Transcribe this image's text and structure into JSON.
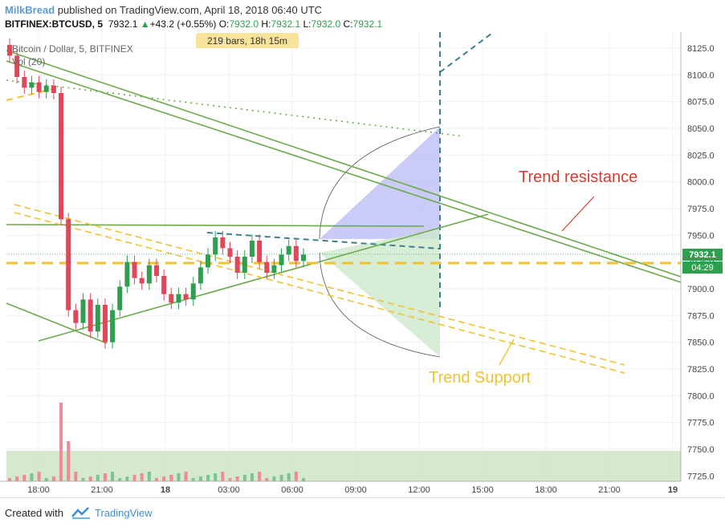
{
  "header": {
    "author": "MilkBread",
    "published_text": "published on TradingView.com, April 18, 2018 06:40 UTC",
    "symbol": "BITFINEX:BTCUSD, 5",
    "last_price": "7932.1",
    "change_arrow": "▲",
    "change": "+43.2 (+0.55%)",
    "ohlc": [
      {
        "label": "O:",
        "value": "7932.0"
      },
      {
        "label": "H:",
        "value": "7932.1"
      },
      {
        "label": "L:",
        "value": "7932.0"
      },
      {
        "label": "C:",
        "value": "7932.1"
      }
    ]
  },
  "legend": {
    "title": "Bitcoin / Dollar, 5, BITFINEX",
    "volume": "Vol (20)"
  },
  "measure_label": "219 bars, 18h 15m",
  "annotations": {
    "resistance": "Trend resistance",
    "support": "Trend Support"
  },
  "price_badges": {
    "last": "7932.1",
    "countdown": "04:29"
  },
  "footer": {
    "created": "Created with",
    "brand": "TradingView"
  },
  "colors": {
    "up": "#2e9e4f",
    "down": "#e0475a",
    "trendline": "#6aaa4b",
    "support": "#f1c232",
    "resistance_text": "#d33f2f",
    "support_text": "#f1c232",
    "projection": "#3d7f8e"
  },
  "chart_data": {
    "type": "candlestick",
    "y_axis": {
      "min": 7720,
      "max": 8140,
      "ticks": [
        8125.0,
        8100.0,
        8075.0,
        8050.0,
        8025.0,
        8000.0,
        7975.0,
        7950.0,
        7925.0,
        7900.0,
        7875.0,
        7850.0,
        7825.0,
        7800.0,
        7775.0,
        7750.0,
        7725.0
      ]
    },
    "x_axis": {
      "ticks": [
        "18:00",
        "21:00",
        "18",
        "03:00",
        "06:00",
        "09:00",
        "12:00",
        "15:00",
        "18:00",
        "21:00",
        "19"
      ]
    },
    "price_series": [
      {
        "t": 0,
        "o": 8128,
        "c": 8118
      },
      {
        "t": 1,
        "o": 8118,
        "c": 8098
      },
      {
        "t": 2,
        "o": 8098,
        "c": 8088
      },
      {
        "t": 3,
        "o": 8088,
        "c": 8093
      },
      {
        "t": 4,
        "o": 8093,
        "c": 8084
      },
      {
        "t": 5,
        "o": 8084,
        "c": 8090
      },
      {
        "t": 6,
        "o": 8090,
        "c": 8083
      },
      {
        "t": 7,
        "o": 8083,
        "c": 7965
      },
      {
        "t": 8,
        "o": 7965,
        "c": 7880
      },
      {
        "t": 9,
        "o": 7880,
        "c": 7868
      },
      {
        "t": 10,
        "o": 7868,
        "c": 7890
      },
      {
        "t": 11,
        "o": 7890,
        "c": 7860
      },
      {
        "t": 12,
        "o": 7860,
        "c": 7885
      },
      {
        "t": 13,
        "o": 7885,
        "c": 7850
      },
      {
        "t": 14,
        "o": 7850,
        "c": 7880
      },
      {
        "t": 15,
        "o": 7880,
        "c": 7902
      },
      {
        "t": 16,
        "o": 7902,
        "c": 7925
      },
      {
        "t": 17,
        "o": 7925,
        "c": 7910
      },
      {
        "t": 18,
        "o": 7910,
        "c": 7905
      },
      {
        "t": 19,
        "o": 7905,
        "c": 7922
      },
      {
        "t": 20,
        "o": 7922,
        "c": 7912
      },
      {
        "t": 21,
        "o": 7912,
        "c": 7895
      },
      {
        "t": 22,
        "o": 7895,
        "c": 7887
      },
      {
        "t": 23,
        "o": 7887,
        "c": 7895
      },
      {
        "t": 24,
        "o": 7895,
        "c": 7890
      },
      {
        "t": 25,
        "o": 7890,
        "c": 7905
      },
      {
        "t": 26,
        "o": 7905,
        "c": 7920
      },
      {
        "t": 27,
        "o": 7920,
        "c": 7932
      },
      {
        "t": 28,
        "o": 7932,
        "c": 7948
      },
      {
        "t": 29,
        "o": 7948,
        "c": 7938
      },
      {
        "t": 30,
        "o": 7938,
        "c": 7930
      },
      {
        "t": 31,
        "o": 7930,
        "c": 7915
      },
      {
        "t": 32,
        "o": 7915,
        "c": 7930
      },
      {
        "t": 33,
        "o": 7930,
        "c": 7945
      },
      {
        "t": 34,
        "o": 7945,
        "c": 7925
      },
      {
        "t": 35,
        "o": 7925,
        "c": 7915
      },
      {
        "t": 36,
        "o": 7915,
        "c": 7922
      },
      {
        "t": 37,
        "o": 7922,
        "c": 7932
      },
      {
        "t": 38,
        "o": 7932,
        "c": 7940
      },
      {
        "t": 39,
        "o": 7940,
        "c": 7926
      },
      {
        "t": 40,
        "o": 7926,
        "c": 7932
      }
    ],
    "trend_lines": [
      {
        "name": "Trend resistance",
        "kind": "solid"
      },
      {
        "name": "Trend Support",
        "kind": "dashed"
      }
    ]
  }
}
